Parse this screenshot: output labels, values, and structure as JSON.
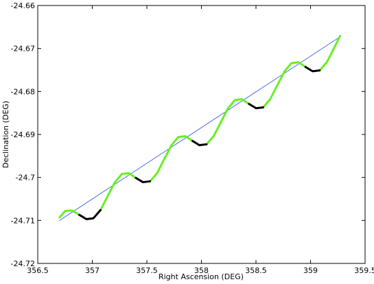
{
  "chart_data": {
    "type": "line",
    "xlabel": "Right Ascension (DEG)",
    "ylabel": "Declination (DEG)",
    "xlim": [
      356.5,
      359.5
    ],
    "xticks": [
      356.5,
      357,
      357.5,
      358,
      358.5,
      359,
      359.5
    ],
    "ylim": [
      -24.72,
      -24.66
    ],
    "yticks": [
      -24.72,
      -24.71,
      -24.7,
      -24.69,
      -24.68,
      -24.67,
      -24.66
    ],
    "series": [
      {
        "color": "#4a6ee6",
        "width": 1,
        "x": [
          356.7,
          359.27
        ],
        "values": [
          -24.71,
          -24.6673
        ]
      },
      {
        "color": "#66f022",
        "width": 3,
        "x": [
          356.7,
          356.751,
          356.816,
          356.881,
          356.946,
          357.01,
          357.075,
          357.14,
          357.205,
          357.27,
          357.334,
          357.399,
          357.464,
          357.529,
          357.594,
          357.658,
          357.723,
          357.788,
          357.853,
          357.918,
          357.982,
          358.047,
          358.112,
          358.177,
          358.242,
          358.306,
          358.371,
          358.436,
          358.501,
          358.566,
          358.63,
          358.695,
          358.76,
          358.825,
          358.89,
          358.954,
          359.019,
          359.084,
          359.149,
          359.214,
          359.27
        ],
        "values": [
          -24.7093,
          -24.7078,
          -24.7077,
          -24.7087,
          null,
          null,
          -24.7076,
          -24.7044,
          -24.7012,
          -24.6992,
          -24.699,
          -24.7001,
          null,
          -24.7009,
          -24.699,
          -24.6958,
          -24.6926,
          -24.6906,
          -24.6904,
          -24.6915,
          null,
          -24.6923,
          -24.6904,
          -24.6872,
          -24.684,
          -24.682,
          -24.6818,
          -24.6829,
          null,
          -24.6837,
          -24.6818,
          -24.6786,
          -24.6754,
          -24.6734,
          -24.6732,
          -24.6743,
          null,
          -24.6751,
          -24.6732,
          -24.67,
          -24.6671
        ]
      },
      {
        "color": "#000000",
        "width": 3,
        "x": [
          356.7,
          356.751,
          356.816,
          356.881,
          356.946,
          357.01,
          357.075,
          357.14,
          357.205,
          357.27,
          357.334,
          357.399,
          357.464,
          357.529,
          357.594,
          357.658,
          357.723,
          357.788,
          357.853,
          357.918,
          357.982,
          358.047,
          358.112,
          358.177,
          358.242,
          358.306,
          358.371,
          358.436,
          358.501,
          358.566,
          358.63,
          358.695,
          358.76,
          358.825,
          358.89,
          358.954,
          359.019,
          359.084,
          359.149,
          359.214,
          359.27
        ],
        "values": [
          null,
          null,
          null,
          -24.7087,
          -24.7097,
          -24.7095,
          -24.7076,
          null,
          null,
          null,
          null,
          -24.7001,
          -24.7011,
          -24.7009,
          null,
          null,
          null,
          null,
          null,
          -24.6915,
          -24.6925,
          -24.6923,
          null,
          null,
          null,
          null,
          null,
          -24.6829,
          -24.6839,
          -24.6837,
          null,
          null,
          null,
          null,
          null,
          -24.6743,
          -24.6753,
          -24.6751,
          null,
          null,
          null
        ]
      }
    ]
  }
}
